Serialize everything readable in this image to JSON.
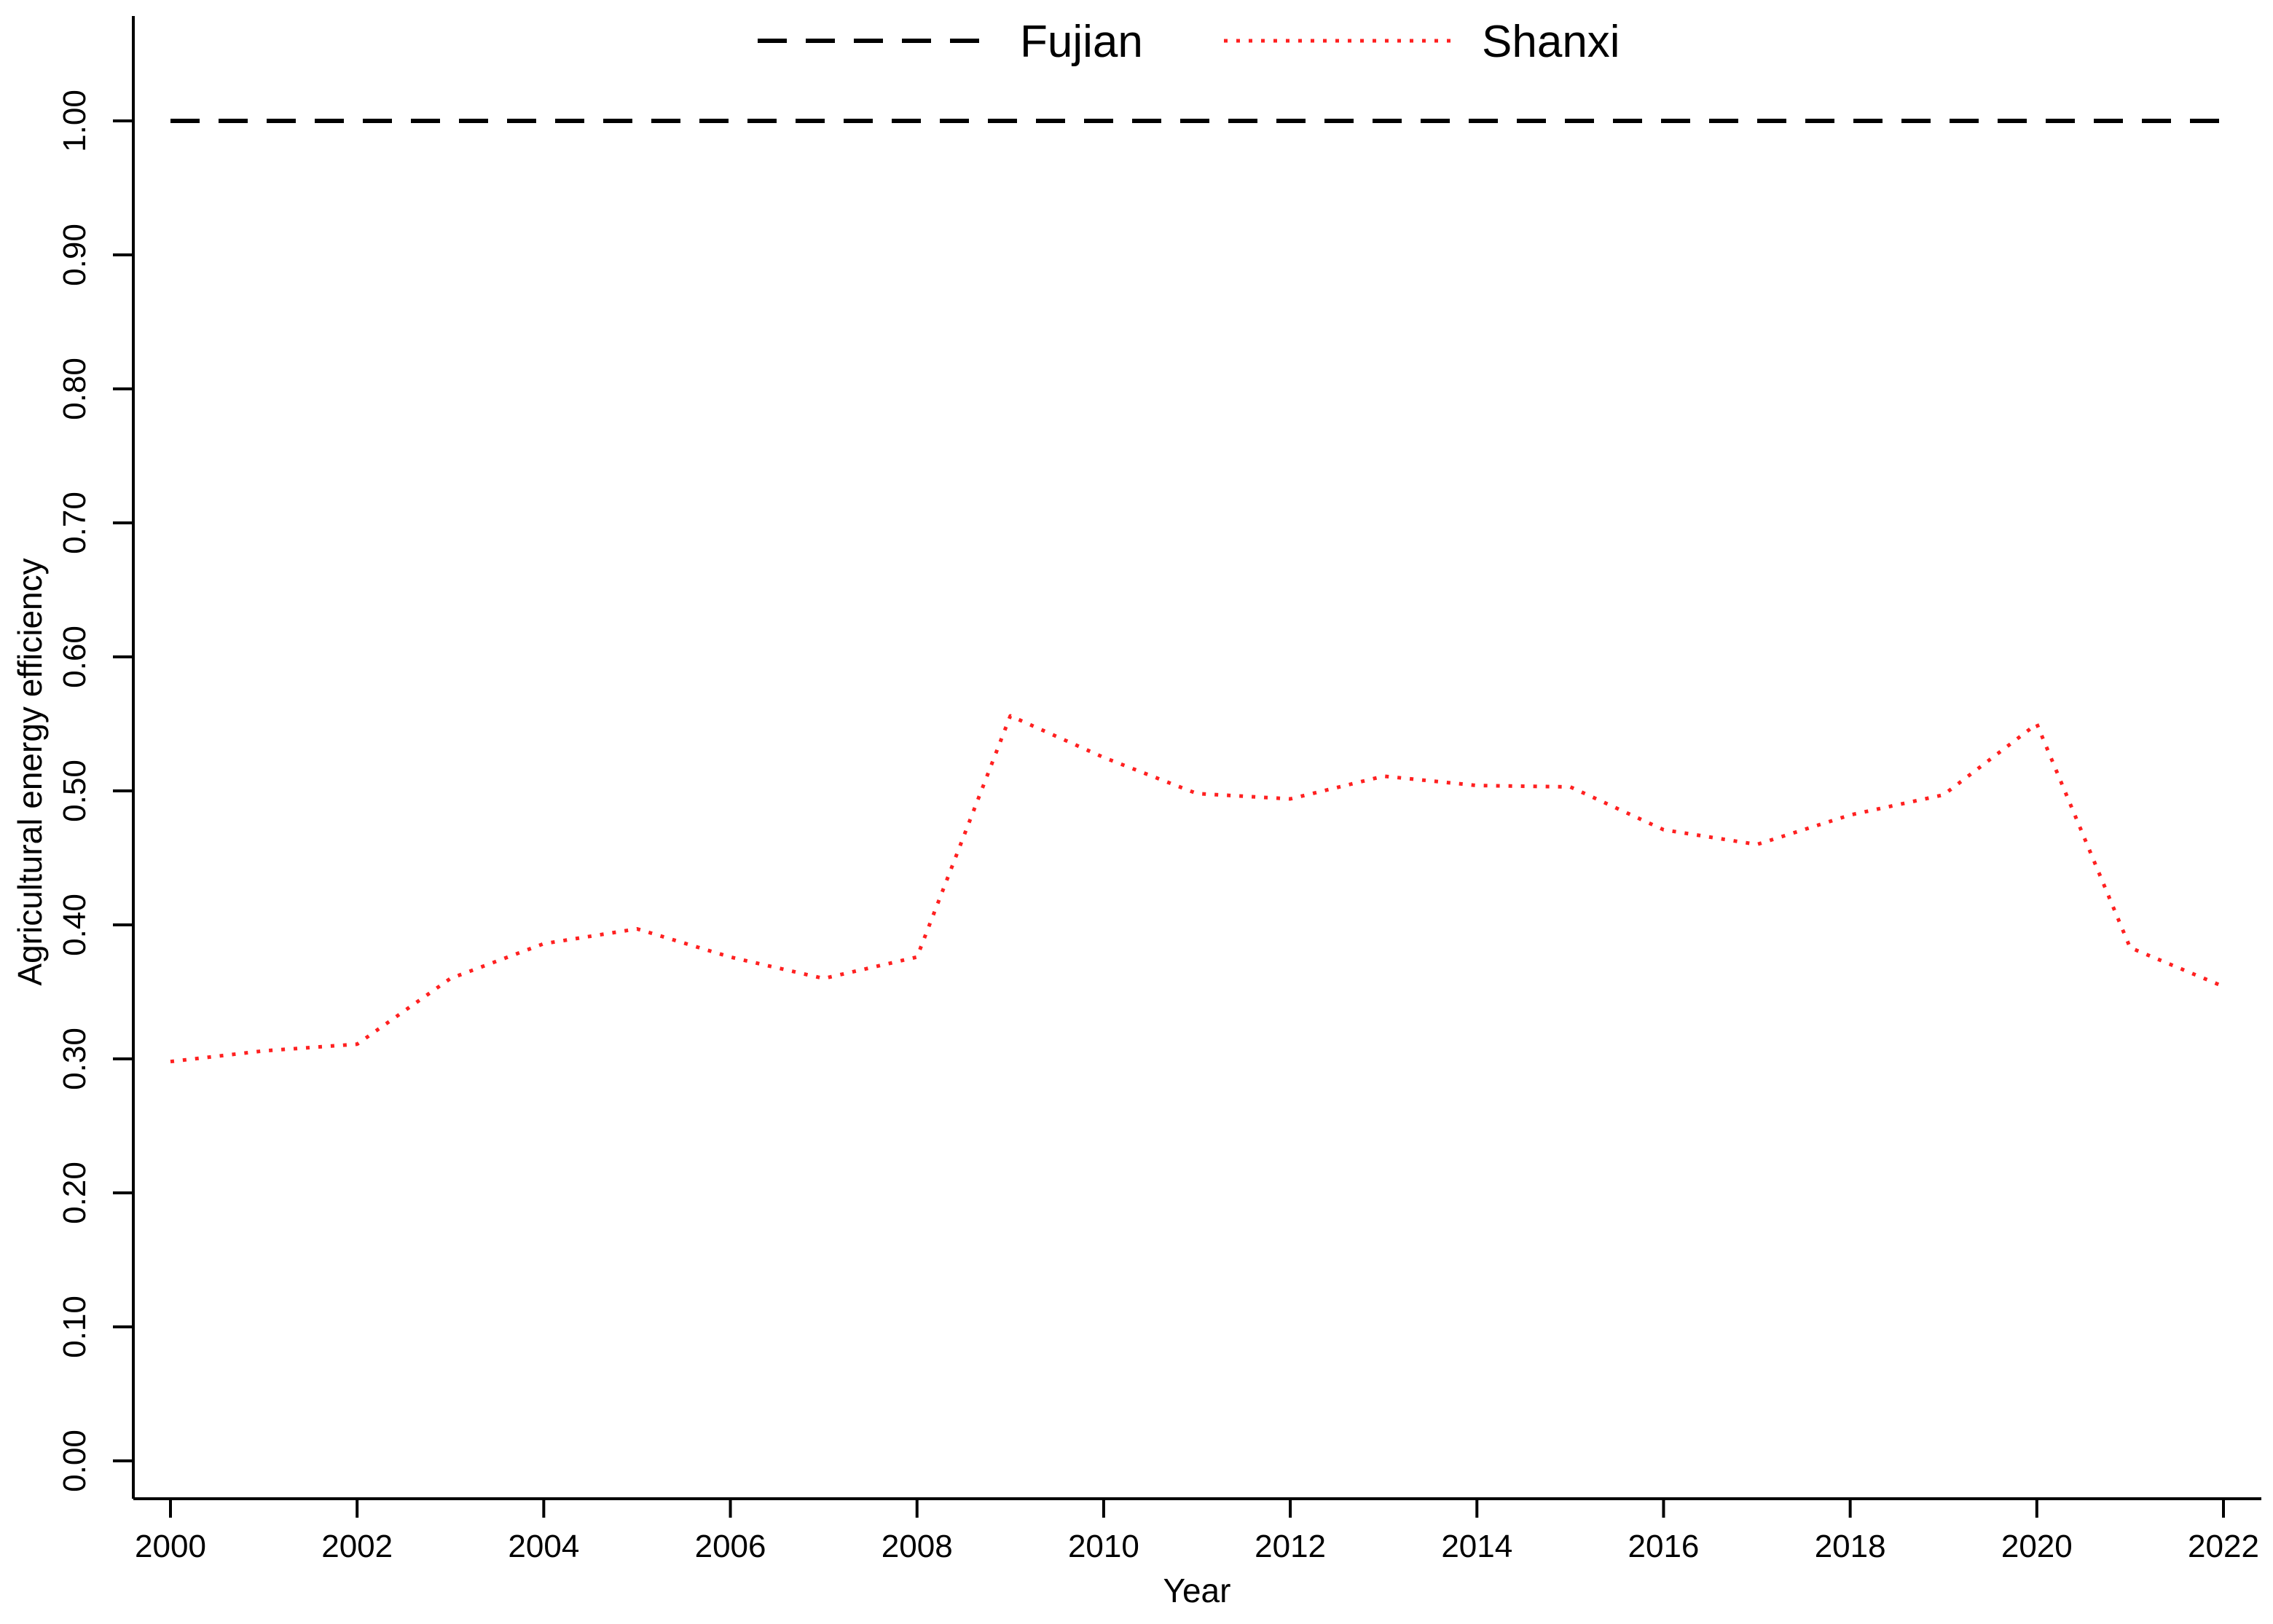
{
  "chart_data": {
    "type": "line",
    "title": "",
    "xlabel": "Year",
    "ylabel": "Agricultural energy efficiency",
    "xlim": [
      2000,
      2022
    ],
    "ylim": [
      0.0,
      1.0
    ],
    "x_ticks": [
      "2000",
      "2002",
      "2004",
      "2006",
      "2008",
      "2010",
      "2012",
      "2014",
      "2016",
      "2018",
      "2020",
      "2022"
    ],
    "y_ticks": [
      "0.00",
      "0.10",
      "0.20",
      "0.30",
      "0.40",
      "0.50",
      "0.60",
      "0.70",
      "0.80",
      "0.90",
      "1.00"
    ],
    "grid": false,
    "legend_position": "top-center",
    "x": [
      2000,
      2001,
      2002,
      2003,
      2004,
      2005,
      2006,
      2007,
      2008,
      2009,
      2010,
      2011,
      2012,
      2013,
      2014,
      2015,
      2016,
      2017,
      2018,
      2019,
      2020,
      2021,
      2022
    ],
    "series": [
      {
        "name": "Fujian",
        "color": "#000000",
        "line_style": "dashed",
        "values": [
          1.0,
          1.0,
          1.0,
          1.0,
          1.0,
          1.0,
          1.0,
          1.0,
          1.0,
          1.0,
          1.0,
          1.0,
          1.0,
          1.0,
          1.0,
          1.0,
          1.0,
          1.0,
          1.0,
          1.0,
          1.0,
          1.0,
          1.0
        ]
      },
      {
        "name": "Shanxi",
        "color": "#ff2020",
        "line_style": "dotted",
        "values": [
          0.298,
          0.306,
          0.311,
          0.36,
          0.386,
          0.397,
          0.376,
          0.36,
          0.376,
          0.556,
          0.525,
          0.498,
          0.494,
          0.511,
          0.504,
          0.503,
          0.471,
          0.46,
          0.482,
          0.497,
          0.55,
          0.383,
          0.354
        ]
      }
    ]
  }
}
